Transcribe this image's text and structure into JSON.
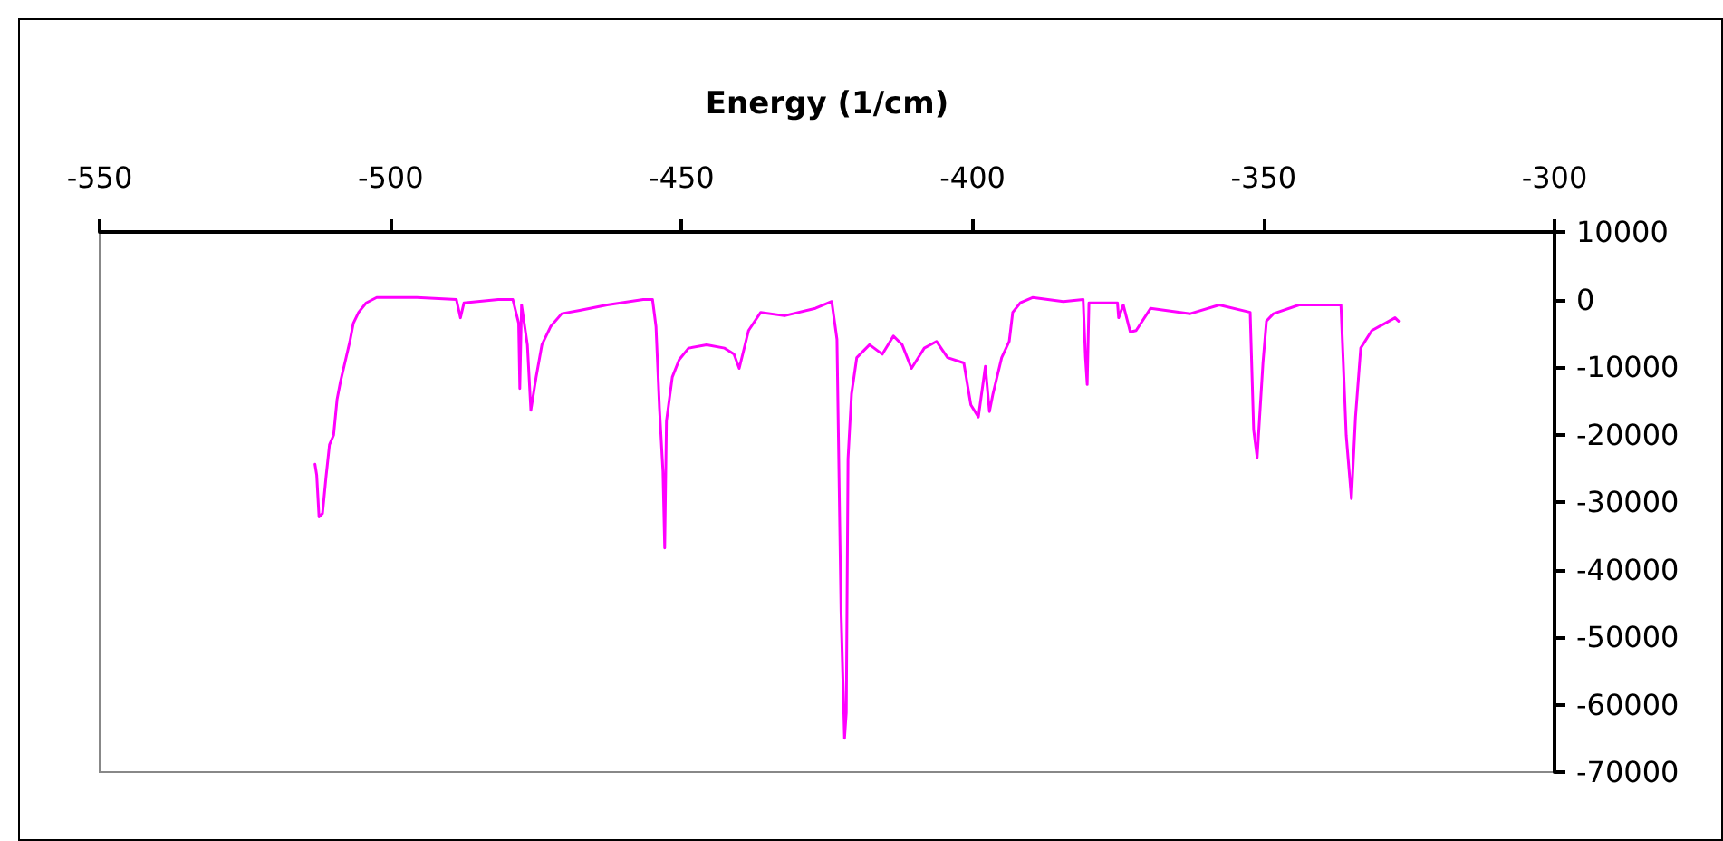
{
  "chart_data": {
    "type": "line",
    "xlabel": "Energy (1/cm)",
    "xlim": [
      -550,
      -300
    ],
    "xticks": [
      -550,
      -500,
      -450,
      -400,
      -350,
      -300
    ],
    "ylim": [
      -70000,
      10000
    ],
    "yticks": [
      -70000,
      -60000,
      -50000,
      -40000,
      -30000,
      -20000,
      -10000,
      0,
      10000
    ],
    "marker": "none",
    "line_style": "solid",
    "series": [
      {
        "color": "#ff00ff",
        "x": [
          -513.0,
          -512.7,
          -512.3,
          -511.7,
          -511.1,
          -510.5,
          -509.8,
          -509.2,
          -508.6,
          -508.0,
          -507.0,
          -506.4,
          -505.5,
          -504.2,
          -502.4,
          -495.5,
          -488.7,
          -488.0,
          -487.4,
          -481.5,
          -479.0,
          -478.0,
          -477.8,
          -477.5,
          -476.5,
          -475.9,
          -475.0,
          -474.0,
          -472.5,
          -470.6,
          -467.5,
          -462.8,
          -456.6,
          -455.0,
          -454.4,
          -453.8,
          -453.2,
          -452.9,
          -452.6,
          -451.6,
          -450.4,
          -448.8,
          -445.7,
          -442.6,
          -441.0,
          -440.1,
          -438.5,
          -436.4,
          -432.3,
          -427.0,
          -424.2,
          -423.3,
          -422.6,
          -422.0,
          -421.7,
          -421.4,
          -420.8,
          -419.9,
          -417.7,
          -415.5,
          -413.6,
          -412.1,
          -410.5,
          -408.3,
          -406.2,
          -404.3,
          -401.5,
          -400.3,
          -399.0,
          -397.8,
          -397.1,
          -396.5,
          -395.0,
          -393.7,
          -393.1,
          -391.8,
          -389.7,
          -384.4,
          -381.0,
          -380.6,
          -380.3,
          -380.0,
          -375.1,
          -374.9,
          -374.1,
          -372.9,
          -371.9,
          -369.4,
          -362.6,
          -357.6,
          -352.3,
          -351.7,
          -351.1,
          -350.1,
          -349.5,
          -348.3,
          -343.9,
          -336.7,
          -335.8,
          -334.9,
          -334.2,
          -333.3,
          -331.4,
          -327.4,
          -326.8
        ],
        "values": [
          -24400,
          -26000,
          -32200,
          -31700,
          -26300,
          -21500,
          -20100,
          -14800,
          -12100,
          -9900,
          -6200,
          -3500,
          -1900,
          -500,
          300,
          300,
          0,
          -2700,
          -500,
          0,
          0,
          -3500,
          -13200,
          -800,
          -6700,
          -16400,
          -11500,
          -6700,
          -4000,
          -2100,
          -1600,
          -800,
          0,
          0,
          -4000,
          -16100,
          -25500,
          -36800,
          -18000,
          -11500,
          -8900,
          -7200,
          -6700,
          -7200,
          -8100,
          -10200,
          -4600,
          -1900,
          -2400,
          -1300,
          -300,
          -5900,
          -46200,
          -65000,
          -61200,
          -23600,
          -14000,
          -8600,
          -6700,
          -8100,
          -5400,
          -6700,
          -10200,
          -7200,
          -6200,
          -8600,
          -9400,
          -15600,
          -17400,
          -9900,
          -16600,
          -14000,
          -8600,
          -6200,
          -1900,
          -500,
          300,
          -300,
          0,
          -8600,
          -12600,
          -500,
          -500,
          -2700,
          -800,
          -4800,
          -4600,
          -1300,
          -2100,
          -800,
          -1900,
          -19300,
          -23400,
          -9400,
          -3200,
          -2100,
          -800,
          -800,
          -20100,
          -29500,
          -17400,
          -7200,
          -4600,
          -2700,
          -3200
        ]
      }
    ]
  }
}
